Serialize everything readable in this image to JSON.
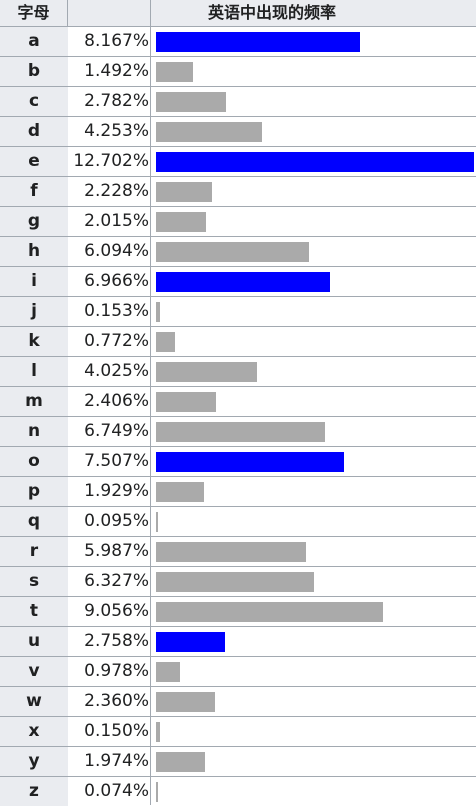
{
  "header": {
    "letter": "字母",
    "frequency": "英语中出现的频率"
  },
  "colors": {
    "vowel_bar": "#0000ff",
    "consonant_bar": "#aaaaaa"
  },
  "chart_data": {
    "type": "bar",
    "categories": [
      "a",
      "b",
      "c",
      "d",
      "e",
      "f",
      "g",
      "h",
      "i",
      "j",
      "k",
      "l",
      "m",
      "n",
      "o",
      "p",
      "q",
      "r",
      "s",
      "t",
      "u",
      "v",
      "w",
      "x",
      "y",
      "z"
    ],
    "value_labels": [
      "8.167%",
      "1.492%",
      "2.782%",
      "4.253%",
      "12.702%",
      "2.228%",
      "2.015%",
      "6.094%",
      "6.966%",
      "0.153%",
      "0.772%",
      "4.025%",
      "2.406%",
      "6.749%",
      "7.507%",
      "1.929%",
      "0.095%",
      "5.987%",
      "6.327%",
      "9.056%",
      "2.758%",
      "0.978%",
      "2.360%",
      "0.150%",
      "1.974%",
      "0.074%"
    ],
    "values": [
      8.167,
      1.492,
      2.782,
      4.253,
      12.702,
      2.228,
      2.015,
      6.094,
      6.966,
      0.153,
      0.772,
      4.025,
      2.406,
      6.749,
      7.507,
      1.929,
      0.095,
      5.987,
      6.327,
      9.056,
      2.758,
      0.978,
      2.36,
      0.15,
      1.974,
      0.074
    ],
    "highlighted": [
      "a",
      "e",
      "i",
      "o",
      "u"
    ],
    "xlim": [
      0,
      12.702
    ],
    "orientation": "horizontal",
    "grid": false
  }
}
